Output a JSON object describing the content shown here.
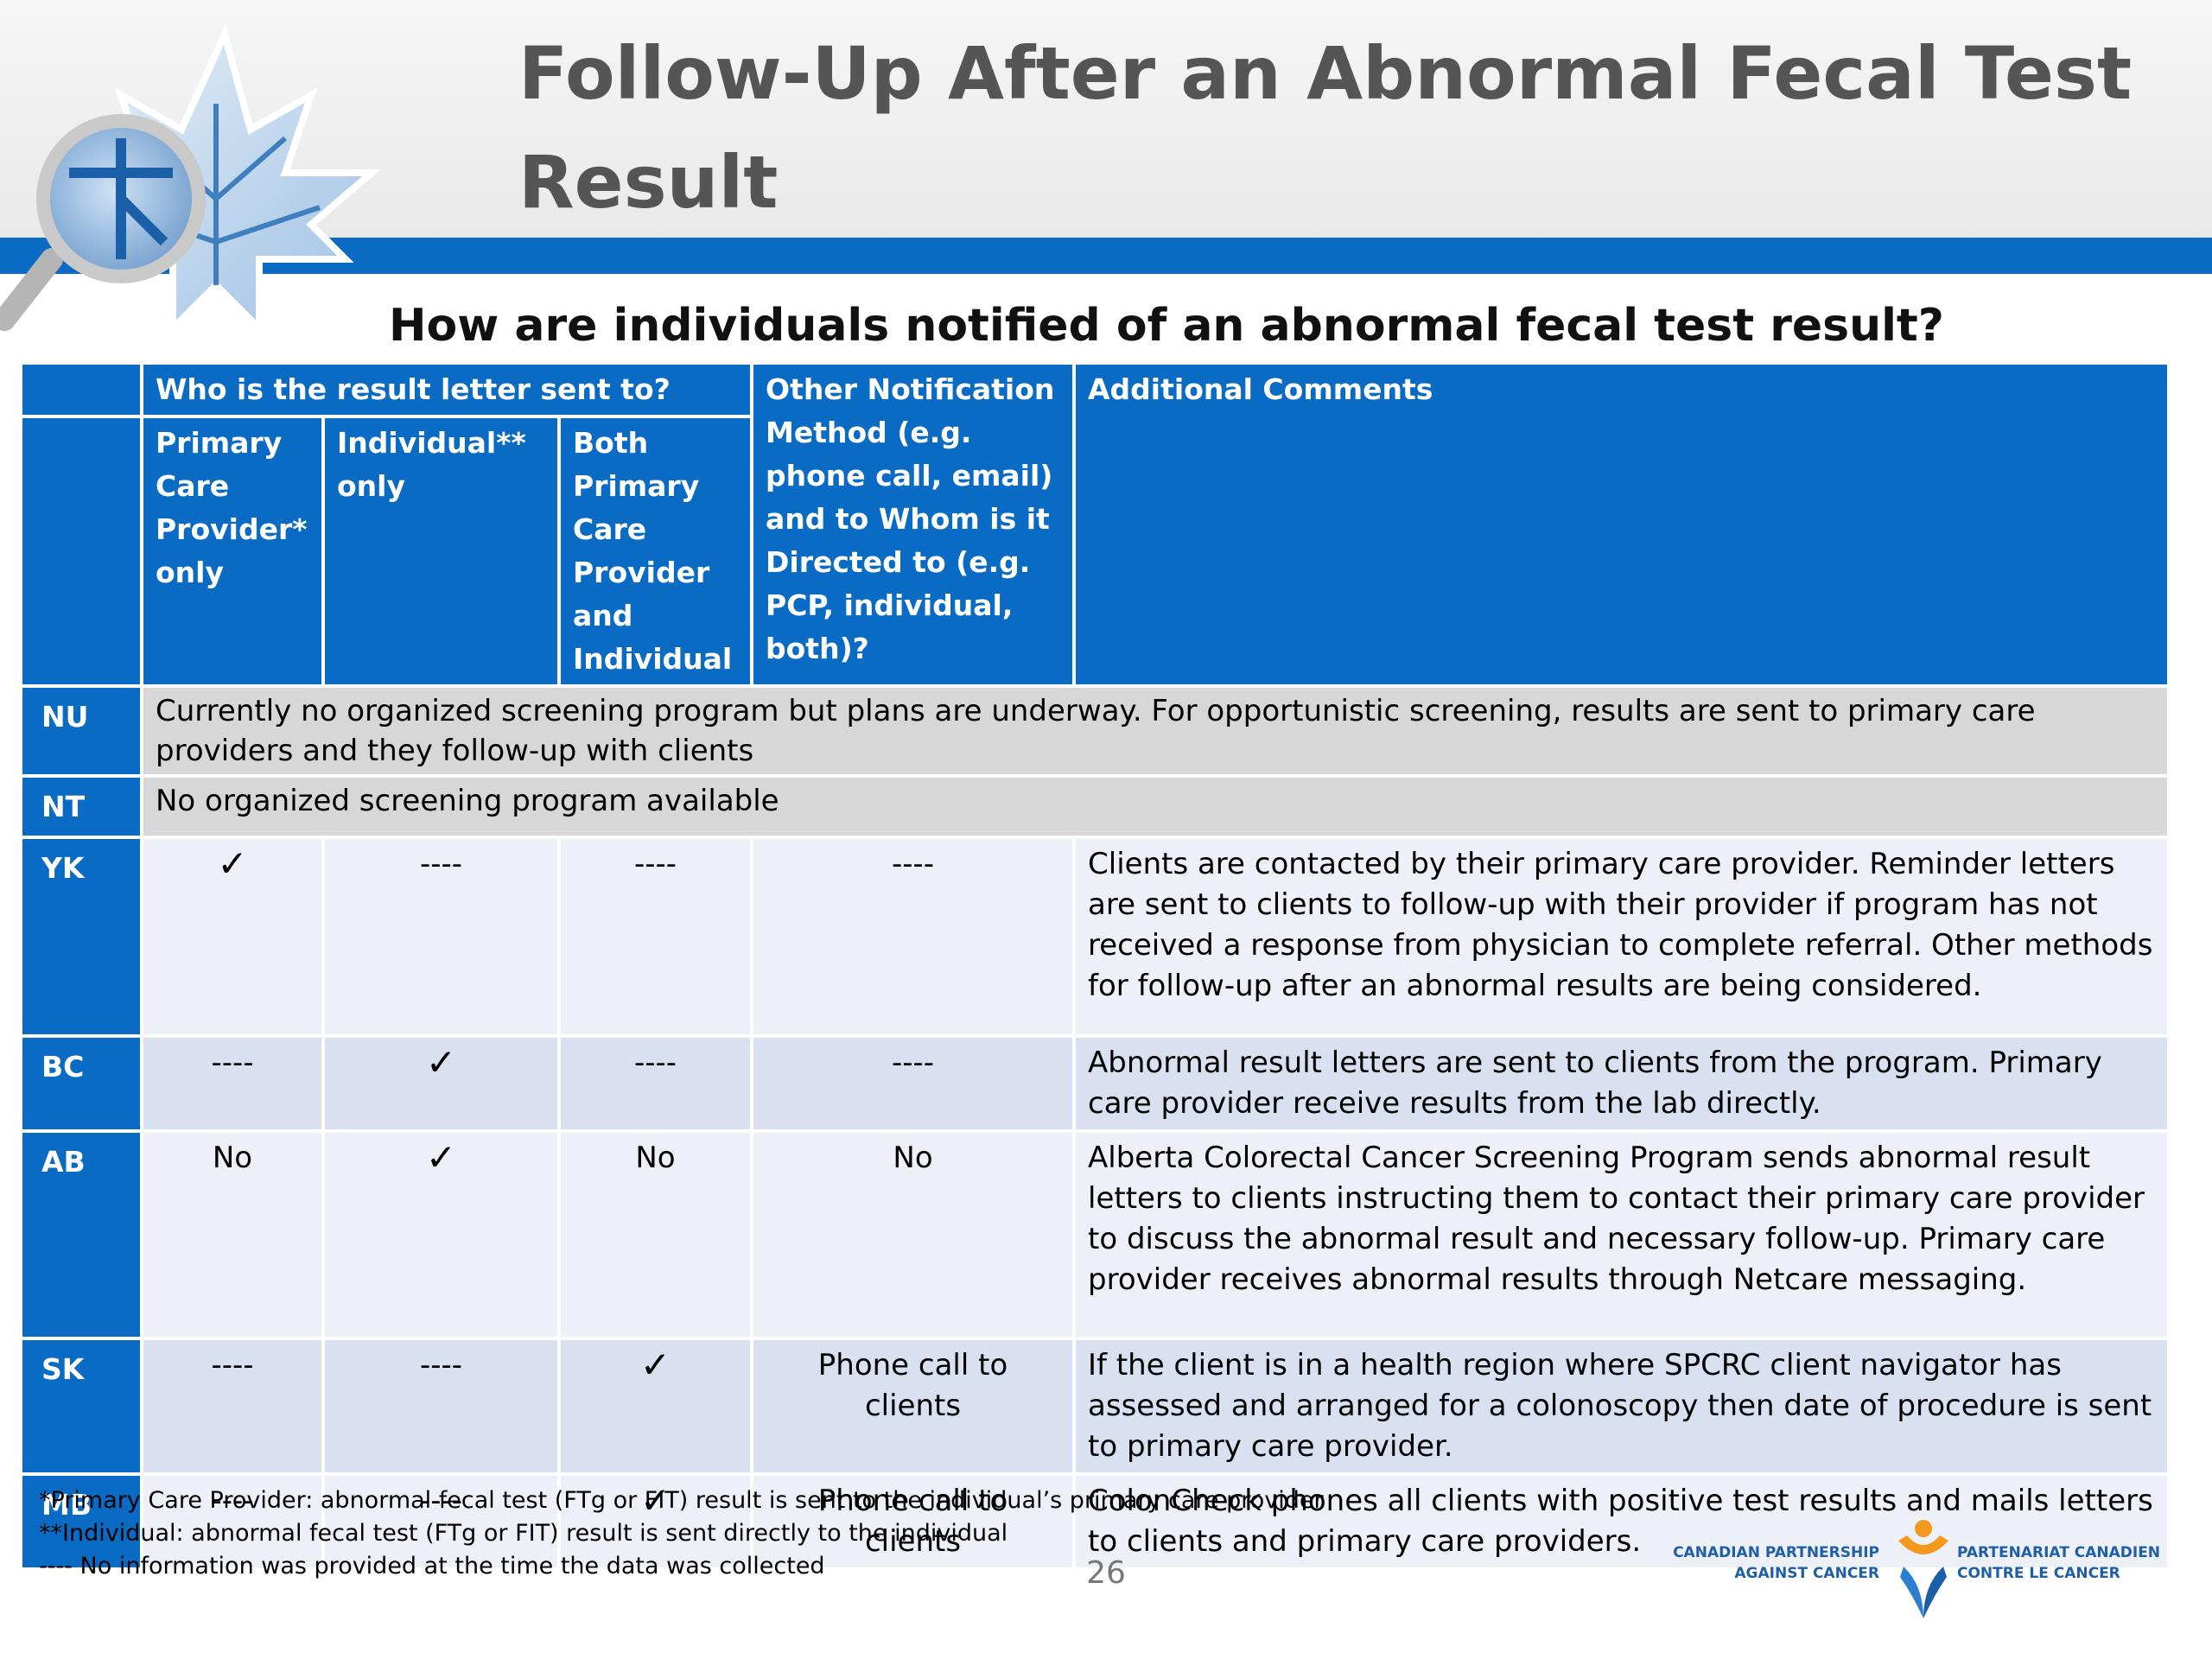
{
  "title": "Follow-Up After an Abnormal Fecal Test Result",
  "subtitle": "How are individuals notified of an abnormal fecal test result?",
  "table": {
    "group_header": "Who is the result letter sent to?",
    "columns": {
      "pcp_only": "Primary Care Provider* only",
      "individual_only": "Individual** only",
      "both": "Both Primary Care Provider and Individual",
      "other_method": "Other Notification Method (e.g. phone call, email) and to Whom is it Directed to (e.g. PCP, individual, both)?",
      "comments": "Additional Comments"
    },
    "rows": [
      {
        "abbr": "NU",
        "note": "Currently no organized screening program but plans are underway. For opportunistic screening, results are sent to primary care providers and they follow-up with clients"
      },
      {
        "abbr": "NT",
        "note": "No organized screening program available"
      },
      {
        "abbr": "YK",
        "pcp": "✓",
        "individual": "----",
        "both": "----",
        "other": "----",
        "comment": "Clients are contacted by their primary care provider. Reminder letters are sent to clients to follow-up with their provider if program has not received a response from physician to complete referral. Other methods for follow-up after an abnormal results are being considered."
      },
      {
        "abbr": "BC",
        "pcp": "----",
        "individual": "✓",
        "both": "----",
        "other": "----",
        "comment": "Abnormal result letters are sent to clients from the program. Primary care provider receive results from the lab directly."
      },
      {
        "abbr": "AB",
        "pcp": "No",
        "individual": "✓",
        "both": "No",
        "other": "No",
        "comment": "Alberta Colorectal Cancer Screening Program sends abnormal result letters to clients instructing them to contact their primary care provider to discuss the abnormal result and necessary follow-up. Primary care provider receives abnormal results through Netcare messaging."
      },
      {
        "abbr": "SK",
        "pcp": "----",
        "individual": "----",
        "both": "✓",
        "other": "Phone call to clients",
        "comment": "If the client is in a health region where SPCRC client navigator has assessed and arranged for a colonoscopy then date of procedure is sent to primary care provider."
      },
      {
        "abbr": "MB",
        "pcp": "----",
        "individual": "----",
        "both": "✓",
        "other": "Phone call to clients",
        "comment": "ColonCheck phones all clients with positive test results and mails letters to clients and primary care providers."
      }
    ]
  },
  "footnotes": [
    "*Primary Care Provider: abnormal fecal test (FTg or FIT) result is sent to the individual’s primary care provider",
    "**Individual: abnormal fecal test (FTg or FIT) result is sent directly to the individual",
    "---- No information was provided at the time the data was collected"
  ],
  "page_number": "26",
  "logo": {
    "en_line1": "CANADIAN PARTNERSHIP",
    "en_line2": "AGAINST CANCER",
    "fr_line1": "PARTENARIAT CANADIEN",
    "fr_line2": "CONTRE LE CANCER"
  },
  "colors": {
    "header_blue": "#0a6bc4",
    "row_alt": "#d9e0ef",
    "row_regular": "#edf0f7",
    "row_nodata": "#d7d7d7",
    "title_gray": "#555555"
  }
}
